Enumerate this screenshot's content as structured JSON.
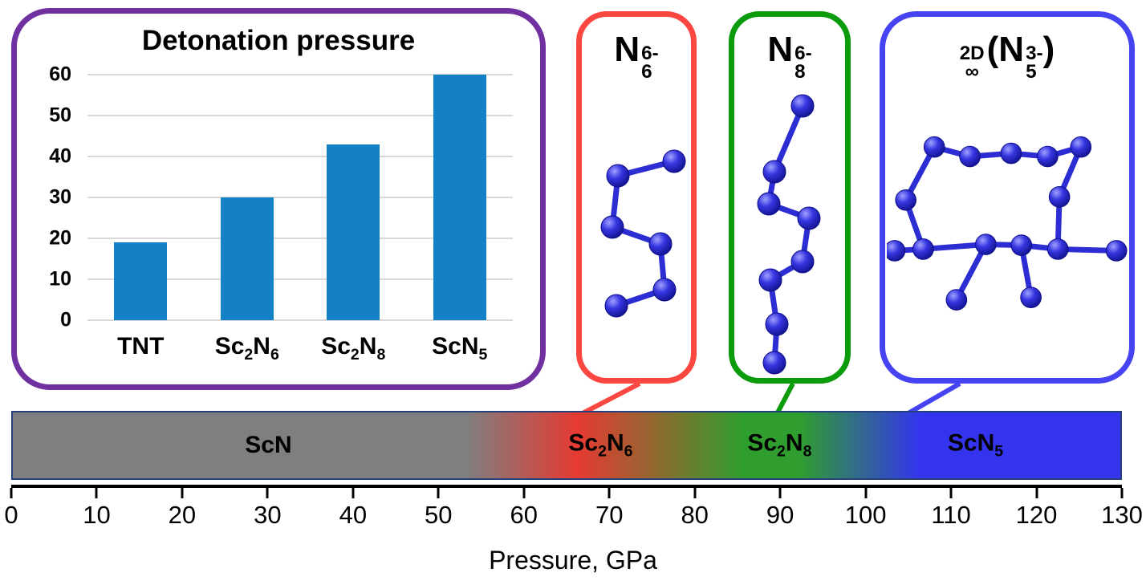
{
  "detonation_chart": {
    "title": "Detonation pressure",
    "y_ticks": [
      0,
      10,
      20,
      30,
      40,
      50,
      60
    ],
    "categories": [
      "TNT",
      "Sc_{2}N_{6}",
      "Sc_{2}N_{8}",
      "ScN_{5}"
    ],
    "values": [
      19,
      30,
      43,
      60
    ],
    "bar_color": "#1480C6",
    "border_color": "#7030A0",
    "gridline_color": "#D9D9D9"
  },
  "molecule_panels": [
    {
      "id": "n6",
      "label_base": "N",
      "label_sub": "6",
      "label_sup": "6-",
      "border_color": "#FB4740",
      "atom_count": 6
    },
    {
      "id": "n8",
      "label_base": "N",
      "label_sub": "8",
      "label_sup": "6-",
      "border_color": "#0B9B0B",
      "atom_count": 8
    },
    {
      "id": "n5-2d",
      "label_prefix_top": "2D",
      "label_prefix_bottom": "∞",
      "label_base": "(N",
      "label_sub": "5",
      "label_sup": "3-",
      "label_close": ")",
      "border_color": "#4543F2"
    }
  ],
  "pressure_bar": {
    "regions": [
      {
        "label": "ScN",
        "position_gpa": 30,
        "color": "#7F7F7F"
      },
      {
        "label": "Sc_{2}N_{6}",
        "position_gpa": 69,
        "color": "#E63A32"
      },
      {
        "label": "Sc_{2}N_{8}",
        "position_gpa": 90,
        "color": "#2F9E2F"
      },
      {
        "label": "ScN_{5}",
        "position_gpa": 113,
        "color": "#3434EE"
      }
    ],
    "border_color": "#24417B"
  },
  "pressure_axis": {
    "min": 0,
    "max": 130,
    "step": 10,
    "ticks": [
      0,
      10,
      20,
      30,
      40,
      50,
      60,
      70,
      80,
      90,
      100,
      110,
      120,
      130
    ],
    "title": "Pressure, GPa"
  },
  "molecule_style": {
    "atom_color": "#2323CE",
    "bond_color": "#2D2DD4"
  },
  "chart_data": {
    "type": "bar",
    "title": "Detonation pressure",
    "categories": [
      "TNT",
      "Sc2N6",
      "Sc2N8",
      "ScN5"
    ],
    "values": [
      19,
      30,
      43,
      60
    ],
    "xlabel": "",
    "ylabel": "",
    "ylim": [
      0,
      60
    ],
    "grid": true,
    "legend": false
  }
}
